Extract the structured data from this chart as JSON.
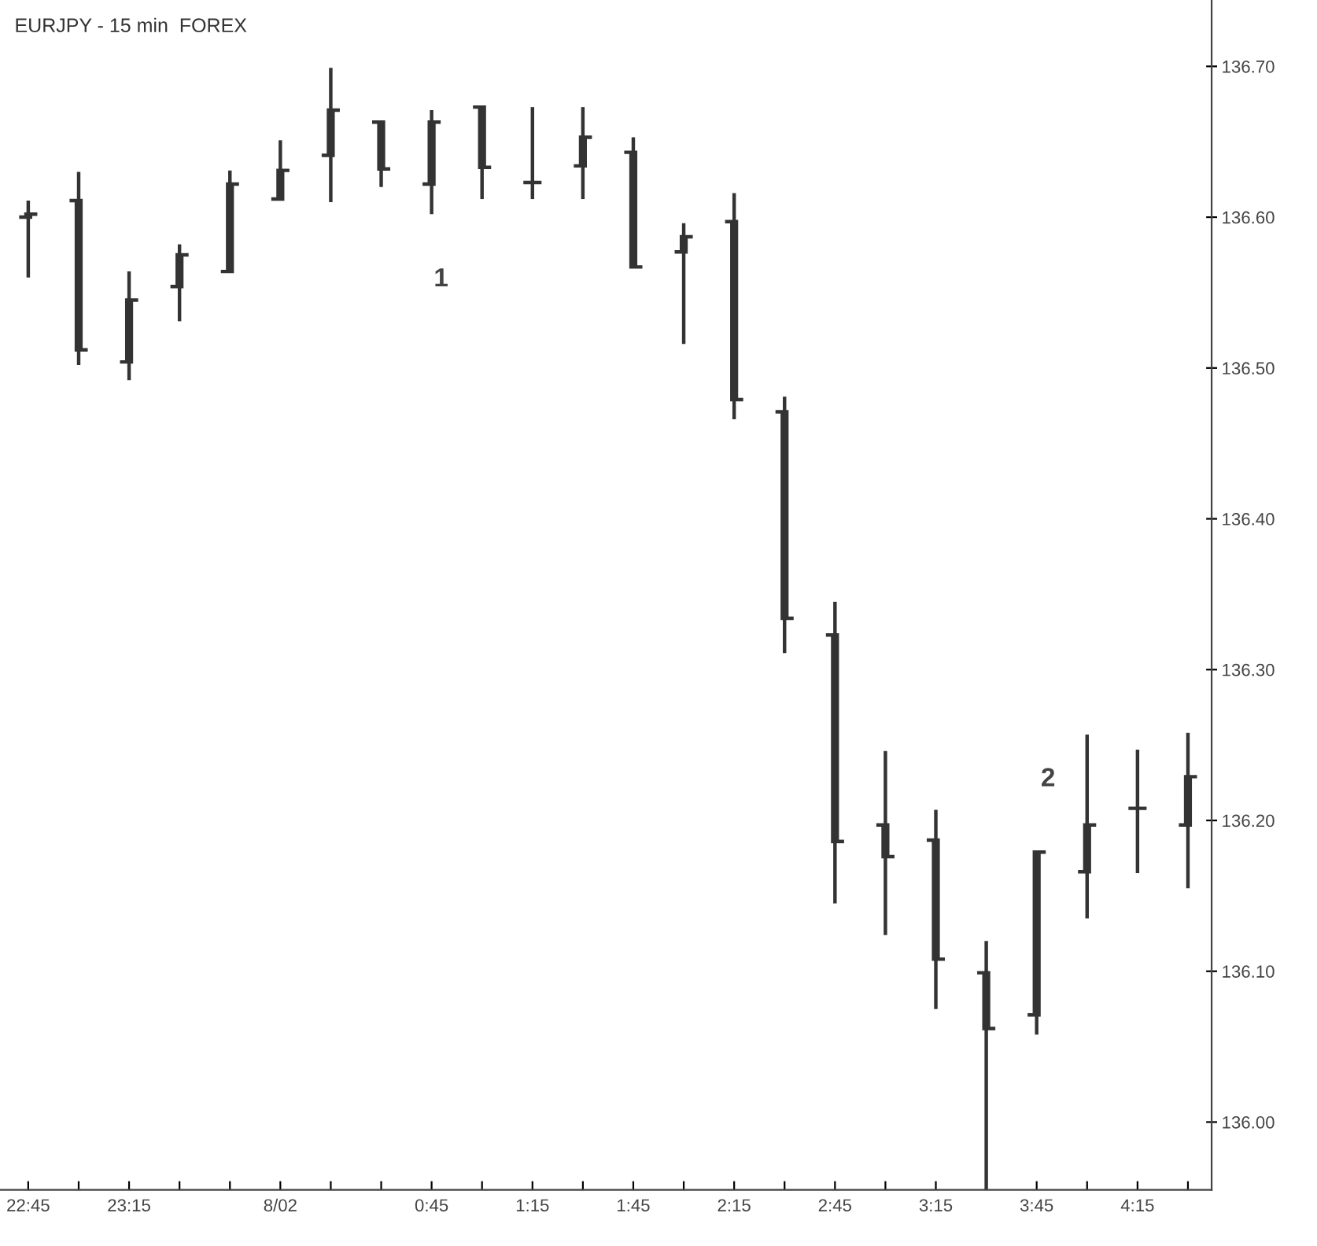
{
  "chart_data": {
    "type": "candlestick",
    "title": "EURJPY - 15 min  FOREX",
    "categories": [
      "22:45",
      null,
      "23:15",
      null,
      null,
      "8/02",
      null,
      null,
      "0:45",
      null,
      "1:15",
      null,
      "1:45",
      null,
      "2:15",
      null,
      "2:45",
      null,
      "3:15",
      null,
      "3:45",
      null,
      "4:15",
      null
    ],
    "ohlc": [
      [
        136.6,
        136.611,
        136.56,
        136.602
      ],
      [
        136.611,
        136.63,
        136.502,
        136.512
      ],
      [
        136.504,
        136.564,
        136.492,
        136.545
      ],
      [
        136.554,
        136.582,
        136.531,
        136.575
      ],
      [
        136.564,
        136.631,
        136.564,
        136.622
      ],
      [
        136.612,
        136.651,
        136.612,
        136.631
      ],
      [
        136.641,
        136.699,
        136.61,
        136.671
      ],
      [
        136.663,
        136.663,
        136.62,
        136.632
      ],
      [
        136.622,
        136.671,
        136.602,
        136.663
      ],
      [
        136.673,
        136.673,
        136.612,
        136.633
      ],
      [
        136.623,
        136.673,
        136.612,
        136.623
      ],
      [
        136.634,
        136.673,
        136.612,
        136.653
      ],
      [
        136.643,
        136.653,
        136.567,
        136.567
      ],
      [
        136.577,
        136.596,
        136.516,
        136.587
      ],
      [
        136.597,
        136.616,
        136.466,
        136.479
      ],
      [
        136.471,
        136.481,
        136.311,
        136.334
      ],
      [
        136.323,
        136.345,
        136.145,
        136.186
      ],
      [
        136.197,
        136.246,
        136.124,
        136.176
      ],
      [
        136.187,
        136.207,
        136.075,
        136.108
      ],
      [
        136.099,
        136.12,
        135.955,
        136.062
      ],
      [
        136.071,
        136.179,
        136.058,
        136.179
      ],
      [
        136.166,
        136.257,
        136.135,
        136.197
      ],
      [
        136.208,
        136.247,
        136.165,
        136.208
      ],
      [
        136.197,
        136.258,
        136.155,
        136.229
      ]
    ],
    "color": "#333333",
    "ylim": [
      135.955,
      136.744
    ],
    "yticks": [
      {
        "value": 136.0,
        "label": "136.00"
      },
      {
        "value": 136.1,
        "label": "136.10"
      },
      {
        "value": 136.2,
        "label": "136.20"
      },
      {
        "value": 136.3,
        "label": "136.30"
      },
      {
        "value": 136.4,
        "label": "136.40"
      },
      {
        "value": 136.5,
        "label": "136.50"
      },
      {
        "value": 136.6,
        "label": "136.60"
      },
      {
        "value": 136.7,
        "label": "136.70"
      }
    ],
    "annotations": [
      "1",
      "2"
    ],
    "grid": false
  }
}
